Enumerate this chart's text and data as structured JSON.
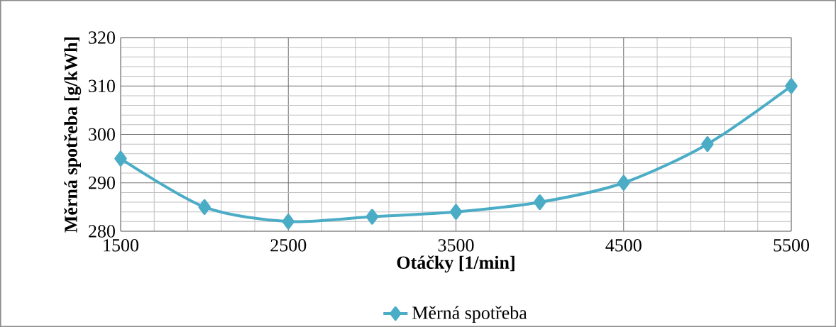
{
  "chart_data": {
    "type": "line",
    "xlabel": "Otáčky [1/min]",
    "ylabel": "Měrná spotřeba [g/kWh]",
    "x": [
      1500,
      2000,
      2500,
      3000,
      3500,
      4000,
      4500,
      5000,
      5500
    ],
    "series": [
      {
        "name": "Měrná spotřeba",
        "color": "#4bacc6",
        "values": [
          295,
          285,
          282,
          283,
          284,
          286,
          290,
          298,
          310
        ]
      }
    ],
    "xlim": [
      1500,
      5500
    ],
    "xticks": [
      1500,
      2500,
      3500,
      4500,
      5500
    ],
    "ylim": [
      280,
      320
    ],
    "yticks": [
      280,
      290,
      300,
      310,
      320
    ],
    "grid": true,
    "legend": "bottom",
    "marker": "diamond",
    "line_style": "solid"
  }
}
